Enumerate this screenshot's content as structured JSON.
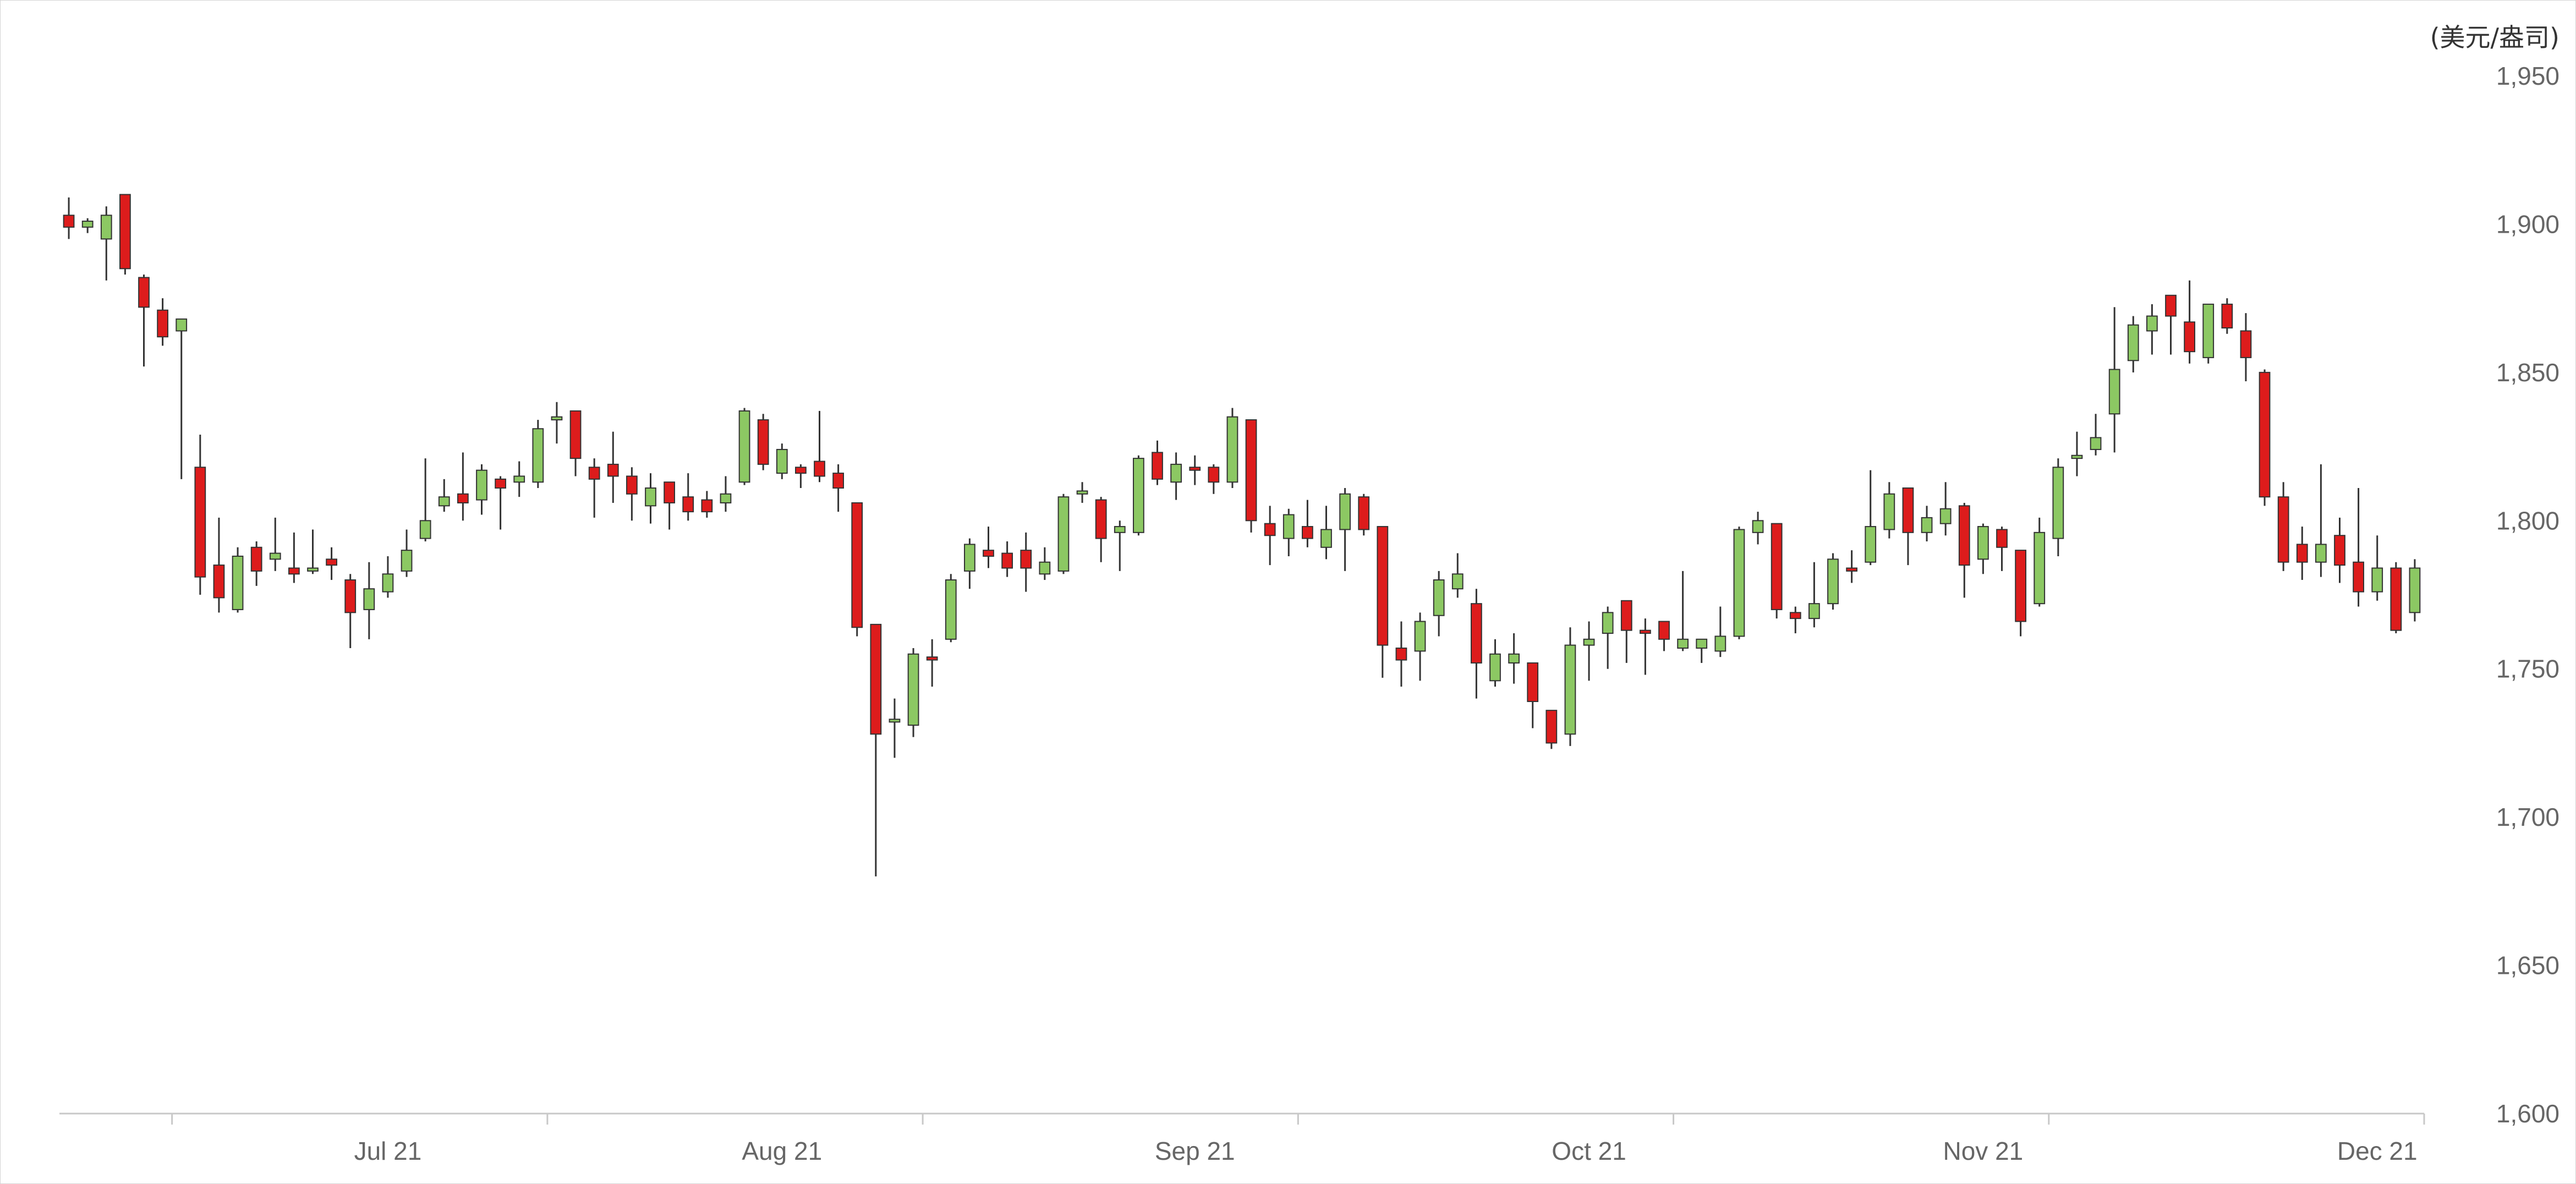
{
  "chart_data": {
    "type": "candlestick",
    "title": "",
    "xlabel": "",
    "ylabel": "(美元/盎司)",
    "ylim": [
      1600,
      1950
    ],
    "y_ticks": [
      "1,950",
      "1,900",
      "1,850",
      "1,800",
      "1,750",
      "1,700",
      "1,650",
      "1,600"
    ],
    "y_tick_values": [
      1950,
      1900,
      1850,
      1800,
      1750,
      1700,
      1650,
      1600
    ],
    "x_ticks": [
      {
        "label": "Jul 21",
        "index": 17
      },
      {
        "label": "Aug 21",
        "index": 38
      },
      {
        "label": "Sep 21",
        "index": 60
      },
      {
        "label": "Oct 21",
        "index": 81
      },
      {
        "label": "Nov 21",
        "index": 102
      },
      {
        "label": "Dec 21",
        "index": 123
      }
    ],
    "x_boundaries": [
      5.5,
      25.5,
      45.5,
      65.5,
      85.5,
      105.5,
      125.5
    ],
    "x_range": [
      -0.5,
      125.5
    ],
    "grid": false,
    "colors": {
      "up": "#8cc863",
      "down": "#dd1c1c",
      "wick": "#333333",
      "axis": "#c8c8c8"
    },
    "series": [
      [
        1903,
        1909,
        1895,
        1899
      ],
      [
        1899,
        1902,
        1897,
        1901
      ],
      [
        1895,
        1906,
        1881,
        1903
      ],
      [
        1910,
        1910,
        1883,
        1885
      ],
      [
        1882,
        1883,
        1852,
        1872
      ],
      [
        1871,
        1875,
        1859,
        1862
      ],
      [
        1864,
        1868,
        1814,
        1868
      ],
      [
        1818,
        1829,
        1775,
        1781
      ],
      [
        1785,
        1801,
        1769,
        1774
      ],
      [
        1770,
        1791,
        1769,
        1788
      ],
      [
        1791,
        1793,
        1778,
        1783
      ],
      [
        1787,
        1801,
        1783,
        1789
      ],
      [
        1784,
        1796,
        1779,
        1782
      ],
      [
        1783,
        1797,
        1782,
        1784
      ],
      [
        1787,
        1791,
        1780,
        1785
      ],
      [
        1780,
        1782,
        1757,
        1769
      ],
      [
        1770,
        1786,
        1760,
        1777
      ],
      [
        1776,
        1788,
        1774,
        1782
      ],
      [
        1783,
        1797,
        1781,
        1790
      ],
      [
        1794,
        1821,
        1793,
        1800
      ],
      [
        1805,
        1814,
        1803,
        1808
      ],
      [
        1809,
        1823,
        1800,
        1806
      ],
      [
        1807,
        1819,
        1802,
        1817
      ],
      [
        1814,
        1815,
        1797,
        1811
      ],
      [
        1813,
        1820,
        1808,
        1815
      ],
      [
        1813,
        1834,
        1811,
        1831
      ],
      [
        1834,
        1840,
        1826,
        1835
      ],
      [
        1837,
        1837,
        1815,
        1821
      ],
      [
        1818,
        1821,
        1801,
        1814
      ],
      [
        1819,
        1830,
        1806,
        1815
      ],
      [
        1815,
        1818,
        1800,
        1809
      ],
      [
        1805,
        1816,
        1799,
        1811
      ],
      [
        1813,
        1812,
        1797,
        1806
      ],
      [
        1808,
        1816,
        1800,
        1803
      ],
      [
        1807,
        1810,
        1801,
        1803
      ],
      [
        1806,
        1815,
        1803,
        1809
      ],
      [
        1813,
        1838,
        1812,
        1837
      ],
      [
        1834,
        1836,
        1817,
        1819
      ],
      [
        1816,
        1826,
        1814,
        1824
      ],
      [
        1818,
        1819,
        1811,
        1816
      ],
      [
        1820,
        1837,
        1813,
        1815
      ],
      [
        1816,
        1819,
        1803,
        1811
      ],
      [
        1806,
        1806,
        1761,
        1764
      ],
      [
        1765,
        1765,
        1680,
        1728
      ],
      [
        1733,
        1740,
        1720,
        1733
      ],
      [
        1731,
        1757,
        1727,
        1755
      ],
      [
        1754,
        1760,
        1744,
        1753
      ],
      [
        1760,
        1782,
        1759,
        1780
      ],
      [
        1783,
        1794,
        1777,
        1792
      ],
      [
        1790,
        1798,
        1784,
        1788
      ],
      [
        1789,
        1793,
        1781,
        1784
      ],
      [
        1790,
        1796,
        1776,
        1784
      ],
      [
        1782,
        1791,
        1780,
        1786
      ],
      [
        1783,
        1809,
        1782,
        1808
      ],
      [
        1809,
        1813,
        1806,
        1810
      ],
      [
        1807,
        1808,
        1786,
        1794
      ],
      [
        1796,
        1800,
        1783,
        1798
      ],
      [
        1796,
        1822,
        1795,
        1821
      ],
      [
        1823,
        1827,
        1812,
        1814
      ],
      [
        1813,
        1823,
        1807,
        1819
      ],
      [
        1818,
        1822,
        1812,
        1817
      ],
      [
        1818,
        1819,
        1809,
        1813
      ],
      [
        1813,
        1838,
        1811,
        1835
      ],
      [
        1834,
        1834,
        1796,
        1800
      ],
      [
        1799,
        1805,
        1785,
        1795
      ],
      [
        1794,
        1804,
        1788,
        1802
      ],
      [
        1798,
        1807,
        1791,
        1794
      ],
      [
        1791,
        1805,
        1787,
        1797
      ],
      [
        1797,
        1811,
        1783,
        1809
      ],
      [
        1808,
        1809,
        1795,
        1797
      ],
      [
        1798,
        1798,
        1747,
        1758
      ],
      [
        1757,
        1766,
        1744,
        1753
      ],
      [
        1756,
        1769,
        1746,
        1766
      ],
      [
        1768,
        1783,
        1761,
        1780
      ],
      [
        1777,
        1789,
        1774,
        1782
      ],
      [
        1772,
        1777,
        1740,
        1752
      ],
      [
        1746,
        1760,
        1744,
        1755
      ],
      [
        1752,
        1762,
        1745,
        1755
      ],
      [
        1752,
        1752,
        1730,
        1739
      ],
      [
        1736,
        1736,
        1723,
        1725
      ],
      [
        1728,
        1764,
        1724,
        1758
      ],
      [
        1758,
        1766,
        1746,
        1760
      ],
      [
        1762,
        1771,
        1750,
        1769
      ],
      [
        1773,
        1773,
        1752,
        1763
      ],
      [
        1763,
        1767,
        1748,
        1762
      ],
      [
        1766,
        1766,
        1756,
        1760
      ],
      [
        1757,
        1783,
        1756,
        1760
      ],
      [
        1757,
        1760,
        1752,
        1760
      ],
      [
        1756,
        1771,
        1754,
        1761
      ],
      [
        1761,
        1798,
        1760,
        1797
      ],
      [
        1796,
        1803,
        1792,
        1800
      ],
      [
        1799,
        1799,
        1767,
        1770
      ],
      [
        1769,
        1771,
        1762,
        1767
      ],
      [
        1767,
        1786,
        1764,
        1772
      ],
      [
        1772,
        1789,
        1770,
        1787
      ],
      [
        1784,
        1790,
        1779,
        1783
      ],
      [
        1786,
        1817,
        1785,
        1798
      ],
      [
        1797,
        1813,
        1794,
        1809
      ],
      [
        1811,
        1811,
        1785,
        1796
      ],
      [
        1796,
        1805,
        1793,
        1801
      ],
      [
        1799,
        1813,
        1795,
        1804
      ],
      [
        1805,
        1806,
        1774,
        1785
      ],
      [
        1787,
        1799,
        1782,
        1798
      ],
      [
        1797,
        1798,
        1783,
        1791
      ],
      [
        1790,
        1790,
        1761,
        1766
      ],
      [
        1772,
        1801,
        1771,
        1796
      ],
      [
        1794,
        1821,
        1788,
        1818
      ],
      [
        1821,
        1830,
        1815,
        1822
      ],
      [
        1824,
        1836,
        1822,
        1828
      ],
      [
        1836,
        1872,
        1823,
        1851
      ],
      [
        1854,
        1869,
        1850,
        1866
      ],
      [
        1864,
        1873,
        1856,
        1869
      ],
      [
        1876,
        1876,
        1856,
        1869
      ],
      [
        1867,
        1881,
        1853,
        1857
      ],
      [
        1855,
        1873,
        1853,
        1873
      ],
      [
        1873,
        1875,
        1863,
        1865
      ],
      [
        1864,
        1870,
        1847,
        1855
      ],
      [
        1850,
        1851,
        1805,
        1808
      ],
      [
        1808,
        1813,
        1783,
        1786
      ],
      [
        1792,
        1798,
        1780,
        1786
      ],
      [
        1786,
        1819,
        1781,
        1792
      ],
      [
        1795,
        1801,
        1779,
        1785
      ],
      [
        1786,
        1811,
        1771,
        1776
      ],
      [
        1776,
        1795,
        1773,
        1784
      ],
      [
        1784,
        1786,
        1762,
        1763
      ],
      [
        1769,
        1787,
        1766,
        1784
      ]
    ]
  }
}
